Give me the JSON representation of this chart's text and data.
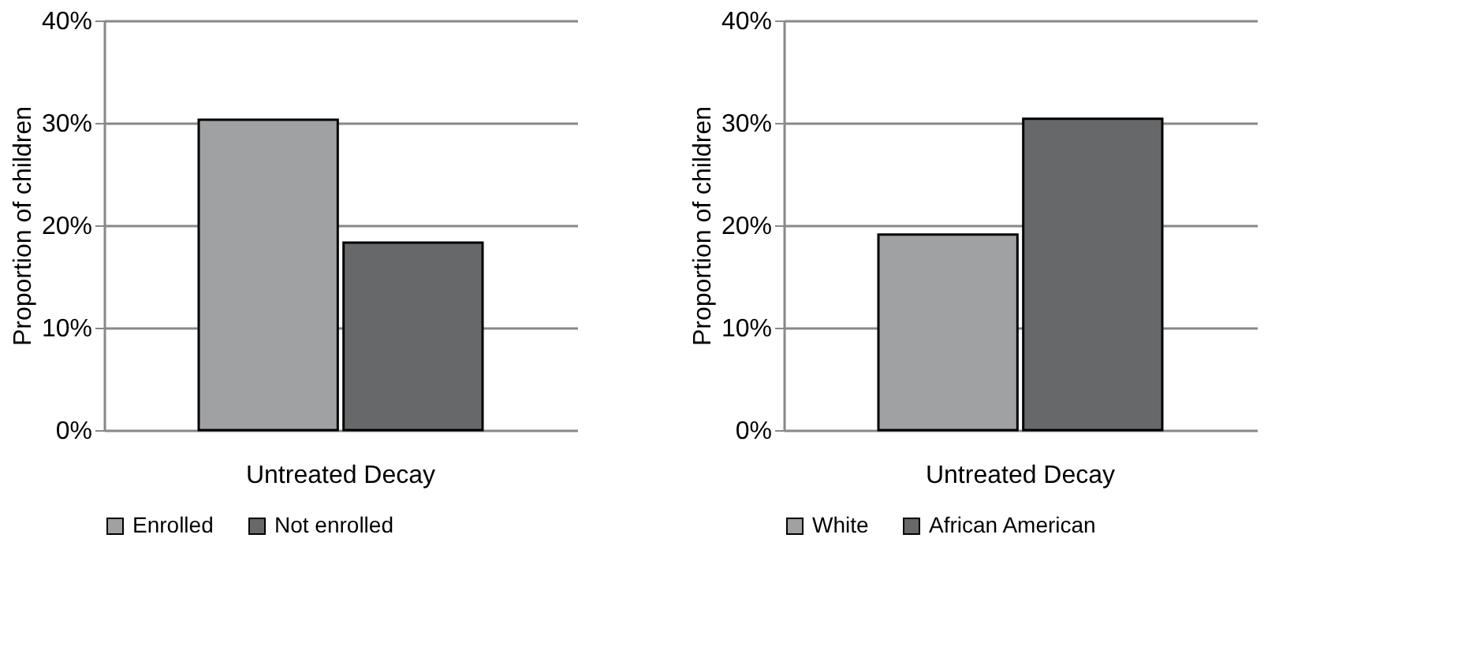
{
  "chart_data": [
    {
      "type": "bar",
      "categories": [
        "Untreated Decay"
      ],
      "ylabel": "Proportion of children",
      "series": [
        {
          "name": "Enrolled",
          "color": "#a0a1a3",
          "values": [
            30.3
          ]
        },
        {
          "name": "Not enrolled",
          "color": "#67686a",
          "values": [
            18.3
          ]
        }
      ],
      "ylim": [
        0,
        40
      ],
      "yticks": [
        {
          "value": 0,
          "label": "0%"
        },
        {
          "value": 10,
          "label": "10%"
        },
        {
          "value": 20,
          "label": "20%"
        },
        {
          "value": 30,
          "label": "30%"
        },
        {
          "value": 40,
          "label": "40%"
        }
      ],
      "grid": "y",
      "legend": "bottom"
    },
    {
      "type": "bar",
      "categories": [
        "Untreated Decay"
      ],
      "ylabel": "Proportion of children",
      "series": [
        {
          "name": "White",
          "color": "#a0a1a3",
          "values": [
            19.1
          ]
        },
        {
          "name": "African American",
          "color": "#67686a",
          "values": [
            30.4
          ]
        }
      ],
      "ylim": [
        0,
        40
      ],
      "yticks": [
        {
          "value": 0,
          "label": "0%"
        },
        {
          "value": 10,
          "label": "10%"
        },
        {
          "value": 20,
          "label": "20%"
        },
        {
          "value": 30,
          "label": "30%"
        },
        {
          "value": 40,
          "label": "40%"
        }
      ],
      "grid": "y",
      "legend": "bottom"
    }
  ]
}
